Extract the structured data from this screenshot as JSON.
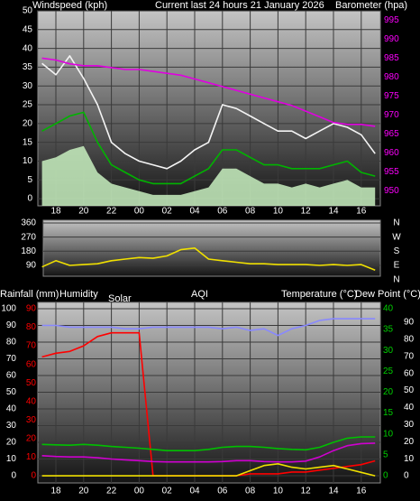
{
  "chart_data": [
    {
      "type": "line",
      "ylabel": "Windspeed (kph)",
      "title": "Current last 24 hours 21 January 2026",
      "y2label": "Barometer (hpa)",
      "categories": [
        null,
        "18",
        null,
        "20",
        null,
        "22",
        null,
        "00",
        null,
        "02",
        null,
        "04",
        null,
        "06",
        null,
        "08",
        null,
        "10",
        null,
        "12",
        null,
        "14",
        null,
        "16",
        null
      ],
      "ylim": [
        -1.9,
        50
      ],
      "yticks": [
        0,
        5,
        10,
        15,
        20,
        25,
        30,
        35,
        40,
        45,
        50
      ],
      "ycolor": "#ffffff",
      "y2lim": [
        946,
        997.5
      ],
      "y2ticks": [
        950,
        955,
        960,
        965,
        970,
        975,
        980,
        985,
        990,
        995
      ],
      "y2color": "#ff00ff",
      "grid": true,
      "series": [
        {
          "color": "#c8f0c0",
          "area": true,
          "values": [
            10,
            11,
            13,
            14,
            7,
            4,
            3,
            2,
            1,
            1,
            1,
            2,
            3,
            8,
            8,
            6,
            4,
            4,
            3,
            4,
            3,
            4,
            5,
            3,
            3
          ]
        },
        {
          "color": "#f4f4f4",
          "values": [
            36,
            33,
            38,
            32,
            25,
            15,
            12,
            10,
            9,
            8,
            10,
            13,
            15,
            25,
            24,
            22,
            20,
            18,
            18,
            16,
            18,
            20,
            19,
            17,
            12
          ]
        },
        {
          "color": "#00b400",
          "values": [
            18,
            20,
            22,
            23,
            15,
            9,
            7,
            5,
            4,
            4,
            4,
            6,
            8,
            13,
            13,
            11,
            9,
            9,
            8,
            8,
            8,
            9,
            10,
            7,
            6
          ]
        },
        {
          "color": "#e000e0",
          "axis": "y2",
          "values": [
            985,
            984.5,
            983.5,
            983,
            983,
            982.5,
            982,
            982,
            981.5,
            981,
            980.5,
            979.5,
            978.5,
            977.5,
            976.5,
            975.5,
            974.5,
            973.5,
            972.5,
            971,
            969.5,
            968,
            967.5,
            967.5,
            967
          ]
        }
      ]
    },
    {
      "type": "line",
      "ylim": [
        21,
        377
      ],
      "yticks": [
        90,
        180,
        270,
        360
      ],
      "ycolor": "#ffffff",
      "y2lim": [
        21,
        377
      ],
      "y2ticks": [
        {
          "value": 360,
          "label": "N"
        },
        {
          "value": 270,
          "label": "W"
        },
        {
          "value": 180,
          "label": "S"
        },
        {
          "value": 90,
          "label": "E"
        },
        {
          "value": 0,
          "label": "N"
        }
      ],
      "y2color": "#ffffff",
      "grid": true,
      "series": [
        {
          "color": "#f0e000",
          "values": [
            80,
            120,
            90,
            95,
            100,
            120,
            130,
            140,
            135,
            150,
            190,
            200,
            130,
            120,
            110,
            100,
            100,
            95,
            95,
            95,
            90,
            95,
            90,
            95,
            60
          ]
        }
      ]
    },
    {
      "type": "line",
      "axis_labels": [
        "Rainfall (mm)",
        "Humidity",
        "Solar",
        "AQI",
        "Temperature (°C)",
        "Dew Point (°C)"
      ],
      "categories": [
        null,
        "18",
        null,
        "20",
        null,
        "22",
        null,
        "00",
        null,
        "02",
        null,
        "04",
        null,
        "06",
        null,
        "08",
        null,
        "10",
        null,
        "12",
        null,
        "14",
        null,
        "16",
        null
      ],
      "ylim": [
        -4.3,
        103.8
      ],
      "yticks": [
        0,
        10,
        20,
        30,
        40,
        50,
        60,
        70,
        80,
        90,
        100
      ],
      "ycolor": "#ffffff",
      "y2lim": [
        -1.73,
        41.5
      ],
      "y2ticks": [
        0,
        5,
        10,
        15,
        20,
        25,
        30,
        35,
        40
      ],
      "y2color": "#00d000",
      "y3lim": [
        -3.9,
        93.4
      ],
      "y3ticks": [
        0,
        10,
        20,
        30,
        40,
        50,
        60,
        70,
        80,
        90
      ],
      "y3color": "#ff0000",
      "y4lim": [
        -4.2,
        101.6
      ],
      "y4ticks": [
        0,
        10,
        20,
        30,
        40,
        50,
        60,
        70,
        80,
        90
      ],
      "y4color": "#ffffff",
      "grid": true,
      "series": [
        {
          "color": "#8888ff",
          "values": [
            90,
            90,
            89,
            89,
            89,
            89,
            88,
            88,
            89,
            89,
            89,
            89,
            89,
            88,
            89,
            87,
            88,
            84,
            88,
            90,
            93,
            94,
            94,
            94,
            94
          ]
        },
        {
          "color": "#ff0000",
          "axis": "y3",
          "values": [
            64,
            66,
            67,
            70,
            75,
            77,
            77,
            77,
            0,
            0,
            0,
            0,
            0,
            0,
            0,
            1,
            1,
            1,
            2,
            2,
            3,
            4,
            5,
            6,
            8
          ]
        },
        {
          "color": "#00c000",
          "axis": "y2",
          "values": [
            7.5,
            7.4,
            7.3,
            7.5,
            7.3,
            7,
            6.8,
            6.6,
            6.3,
            6,
            6,
            6,
            6.3,
            6.8,
            7,
            7,
            6.8,
            6.5,
            6.3,
            6.2,
            6.8,
            8,
            9,
            9.3,
            9.3
          ]
        },
        {
          "color": "#d000d0",
          "axis": "y2",
          "values": [
            4.8,
            4.6,
            4.5,
            4.5,
            4.3,
            4,
            3.8,
            3.6,
            3.4,
            3.3,
            3.3,
            3.3,
            3.3,
            3.4,
            3.6,
            3.6,
            3.4,
            3.3,
            3.3,
            3.5,
            4.5,
            6,
            7.2,
            7.7,
            7.8
          ]
        },
        {
          "color": "#f0e000",
          "axis": "y4",
          "values": [
            0,
            0,
            0,
            0,
            0,
            0,
            0,
            0,
            0,
            0,
            0,
            0,
            0,
            0,
            0,
            3,
            6,
            7,
            5,
            4,
            5,
            6,
            4,
            2,
            0
          ]
        }
      ]
    }
  ]
}
